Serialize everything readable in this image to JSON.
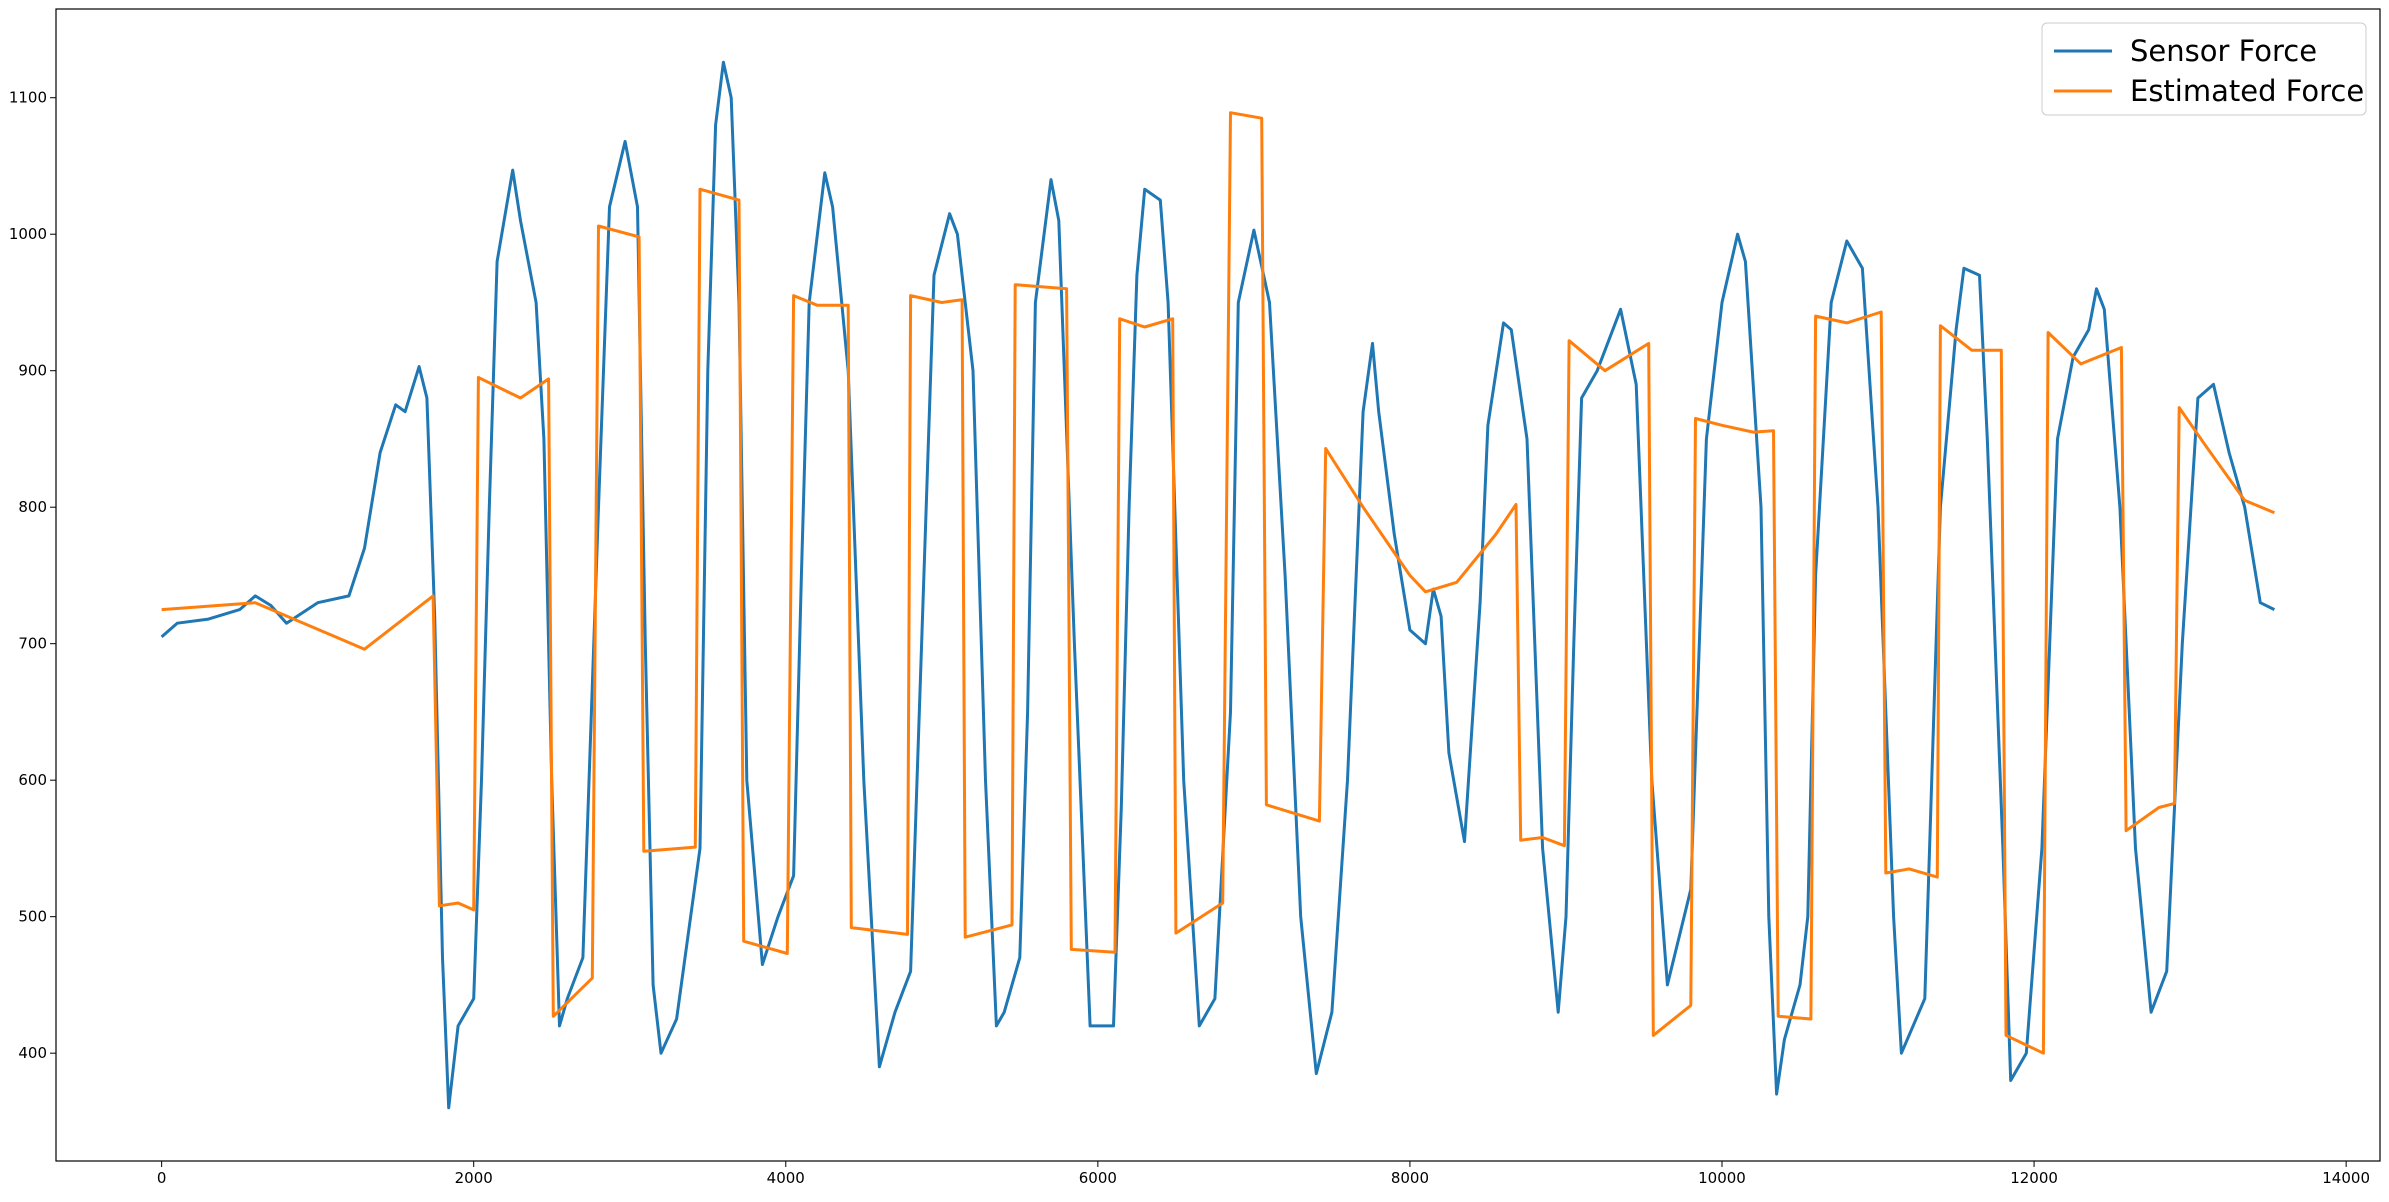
{
  "chart_data": {
    "type": "line",
    "xlim": [
      -677,
      14217
    ],
    "ylim": [
      321,
      1165
    ],
    "xticks": [
      0,
      2000,
      4000,
      6000,
      8000,
      10000,
      12000,
      14000
    ],
    "yticks": [
      400,
      500,
      600,
      700,
      800,
      900,
      1000,
      1100
    ],
    "grid": false,
    "legend": "upper right",
    "series": [
      {
        "name": "Sensor Force",
        "color": "#1f77b4",
        "x": [
          0,
          100,
          300,
          500,
          600,
          700,
          800,
          1000,
          1200,
          1300,
          1400,
          1500,
          1560,
          1650,
          1700,
          1750,
          1800,
          1840,
          1900,
          2000,
          2050,
          2100,
          2150,
          2250,
          2300,
          2400,
          2450,
          2500,
          2550,
          2600,
          2700,
          2800,
          2870,
          2970,
          3050,
          3100,
          3150,
          3200,
          3300,
          3450,
          3500,
          3550,
          3600,
          3650,
          3700,
          3750,
          3850,
          3950,
          4050,
          4100,
          4150,
          4250,
          4300,
          4400,
          4500,
          4600,
          4700,
          4800,
          4900,
          4950,
          5050,
          5100,
          5200,
          5280,
          5350,
          5400,
          5500,
          5550,
          5600,
          5700,
          5750,
          5850,
          5950,
          6100,
          6150,
          6200,
          6250,
          6300,
          6400,
          6450,
          6550,
          6650,
          6750,
          6850,
          6900,
          7000,
          7100,
          7200,
          7300,
          7400,
          7500,
          7600,
          7700,
          7760,
          7800,
          7900,
          8000,
          8100,
          8150,
          8200,
          8250,
          8350,
          8450,
          8500,
          8600,
          8650,
          8750,
          8850,
          8950,
          9000,
          9050,
          9100,
          9200,
          9350,
          9450,
          9550,
          9650,
          9800,
          9900,
          10000,
          10100,
          10150,
          10250,
          10300,
          10350,
          10400,
          10500,
          10550,
          10600,
          10700,
          10800,
          10900,
          11000,
          11100,
          11150,
          11300,
          11400,
          11500,
          11550,
          11650,
          11700,
          11800,
          11850,
          11950,
          12050,
          12150,
          12250,
          12350,
          12400,
          12450,
          12550,
          12650,
          12750,
          12850,
          12950,
          13050,
          13150,
          13250,
          13350,
          13450,
          13540
        ],
        "values": [
          705,
          715,
          718,
          725,
          735,
          728,
          715,
          730,
          735,
          770,
          840,
          875,
          870,
          903,
          880,
          720,
          470,
          360,
          420,
          440,
          600,
          800,
          980,
          1047,
          1010,
          950,
          850,
          600,
          420,
          440,
          470,
          800,
          1020,
          1068,
          1020,
          700,
          450,
          400,
          425,
          550,
          900,
          1080,
          1126,
          1100,
          950,
          600,
          465,
          500,
          530,
          750,
          950,
          1045,
          1020,
          900,
          600,
          390,
          430,
          460,
          800,
          970,
          1015,
          1000,
          900,
          600,
          420,
          430,
          470,
          650,
          950,
          1040,
          1010,
          700,
          420,
          420,
          580,
          800,
          970,
          1033,
          1025,
          950,
          600,
          420,
          440,
          650,
          950,
          1003,
          950,
          750,
          500,
          385,
          430,
          600,
          870,
          920,
          870,
          780,
          710,
          700,
          740,
          720,
          620,
          555,
          730,
          860,
          935,
          930,
          850,
          550,
          430,
          500,
          700,
          880,
          900,
          945,
          890,
          600,
          450,
          520,
          850,
          950,
          1000,
          980,
          800,
          500,
          370,
          410,
          450,
          500,
          750,
          950,
          995,
          975,
          800,
          500,
          400,
          440,
          800,
          930,
          975,
          970,
          850,
          550,
          380,
          400,
          550,
          850,
          910,
          930,
          960,
          945,
          800,
          550,
          430,
          460,
          700,
          880,
          890,
          840,
          800,
          730,
          725
        ]
      },
      {
        "name": "Estimated Force",
        "color": "#ff7f0e",
        "x": [
          0,
          600,
          1300,
          1740,
          1780,
          1900,
          2000,
          2030,
          2300,
          2480,
          2510,
          2760,
          2800,
          3060,
          3090,
          3420,
          3450,
          3700,
          3730,
          4010,
          4050,
          4200,
          4400,
          4420,
          4780,
          4800,
          5000,
          5130,
          5150,
          5450,
          5470,
          5800,
          5830,
          6110,
          6140,
          6300,
          6480,
          6500,
          6800,
          6850,
          7050,
          7080,
          7420,
          7460,
          7700,
          8000,
          8100,
          8300,
          8550,
          8680,
          8710,
          8850,
          8990,
          9020,
          9250,
          9530,
          9560,
          9800,
          9830,
          10000,
          10200,
          10330,
          10360,
          10570,
          10600,
          10800,
          11020,
          11050,
          11200,
          11380,
          11400,
          11600,
          11790,
          11820,
          12060,
          12090,
          12300,
          12560,
          12590,
          12800,
          12900,
          12930,
          13100,
          13350,
          13540
        ],
        "values": [
          725,
          730,
          696,
          735,
          508,
          510,
          505,
          895,
          880,
          894,
          427,
          455,
          1006,
          998,
          548,
          551,
          1033,
          1025,
          482,
          473,
          955,
          948,
          948,
          492,
          487,
          955,
          950,
          952,
          485,
          494,
          963,
          960,
          476,
          474,
          938,
          932,
          938,
          488,
          510,
          1089,
          1085,
          582,
          570,
          843,
          800,
          750,
          738,
          745,
          780,
          802,
          556,
          558,
          552,
          922,
          900,
          920,
          413,
          435,
          865,
          860,
          855,
          856,
          427,
          425,
          940,
          935,
          943,
          532,
          535,
          529,
          933,
          915,
          915,
          413,
          400,
          928,
          905,
          917,
          563,
          580,
          583,
          873,
          845,
          805,
          796
        ]
      }
    ]
  }
}
